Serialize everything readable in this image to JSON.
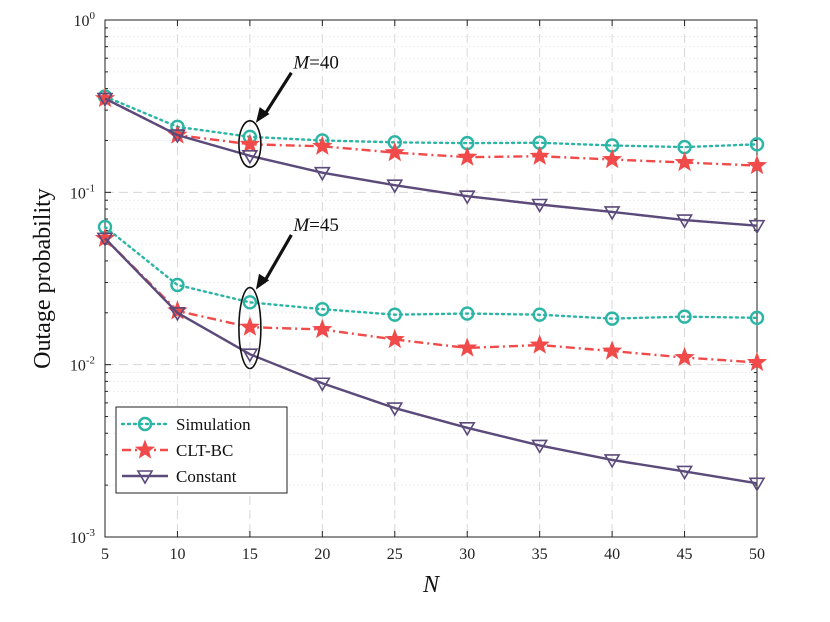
{
  "chart_data": {
    "type": "line",
    "xlabel": "N",
    "ylabel": "Outage probability",
    "yscale": "log",
    "xlim": [
      5,
      50
    ],
    "ylim": [
      0.001,
      1
    ],
    "grid": true,
    "x": [
      5,
      10,
      15,
      20,
      25,
      30,
      35,
      40,
      45,
      50
    ],
    "x_ticks": [
      "5",
      "10",
      "15",
      "20",
      "25",
      "30",
      "35",
      "40",
      "45",
      "50"
    ],
    "y_ticks": [
      {
        "value": 0.001,
        "base": "10",
        "exp": "-3"
      },
      {
        "value": 0.01,
        "base": "10",
        "exp": "-2"
      },
      {
        "value": 0.1,
        "base": "10",
        "exp": "-1"
      },
      {
        "value": 1,
        "base": "10",
        "exp": "0"
      }
    ],
    "legend_position": "bottom-left",
    "series": [
      {
        "name": "Simulation",
        "group": "M=40",
        "color": "#2bb5a5",
        "style": "dotted",
        "marker": "circle",
        "values": [
          0.36,
          0.24,
          0.21,
          0.2,
          0.195,
          0.193,
          0.194,
          0.187,
          0.183,
          0.19
        ]
      },
      {
        "name": "CLT-BC",
        "group": "M=40",
        "color": "#f04a4a",
        "style": "dashdot",
        "marker": "star",
        "values": [
          0.35,
          0.215,
          0.19,
          0.185,
          0.17,
          0.16,
          0.162,
          0.155,
          0.149,
          0.143
        ]
      },
      {
        "name": "Constant",
        "group": "M=40",
        "color": "#5b4a7a",
        "style": "solid",
        "marker": "triangle-down",
        "values": [
          0.35,
          0.215,
          0.163,
          0.13,
          0.11,
          0.095,
          0.085,
          0.077,
          0.069,
          0.064
        ]
      },
      {
        "name": "Simulation",
        "group": "M=45",
        "color": "#2bb5a5",
        "style": "dotted",
        "marker": "circle",
        "values": [
          0.063,
          0.029,
          0.023,
          0.021,
          0.0195,
          0.0198,
          0.0195,
          0.0185,
          0.019,
          0.0187
        ]
      },
      {
        "name": "CLT-BC",
        "group": "M=45",
        "color": "#f04a4a",
        "style": "dashdot",
        "marker": "star",
        "values": [
          0.054,
          0.0205,
          0.0165,
          0.016,
          0.014,
          0.0125,
          0.013,
          0.012,
          0.011,
          0.0103
        ]
      },
      {
        "name": "Constant",
        "group": "M=45",
        "color": "#5b4a7a",
        "style": "solid",
        "marker": "triangle-down",
        "values": [
          0.054,
          0.02,
          0.0115,
          0.0078,
          0.0056,
          0.0043,
          0.0034,
          0.0028,
          0.0024,
          0.00205
        ]
      }
    ],
    "legend": [
      {
        "label": "Simulation",
        "color": "#2bb5a5",
        "style": "dotted",
        "marker": "circle"
      },
      {
        "label": "CLT-BC",
        "color": "#f04a4a",
        "style": "dashdot",
        "marker": "star"
      },
      {
        "label": "Constant",
        "color": "#5b4a7a",
        "style": "solid",
        "marker": "triangle-down"
      }
    ],
    "annotations": [
      {
        "var": "M",
        "text": "=40",
        "x": 15,
        "y_range": [
          0.14,
          0.26
        ],
        "text_x": 18,
        "text_y": 0.55
      },
      {
        "var": "M",
        "text": "=45",
        "x": 15,
        "y_range": [
          0.0095,
          0.028
        ],
        "text_x": 18,
        "text_y": 0.063
      }
    ]
  }
}
